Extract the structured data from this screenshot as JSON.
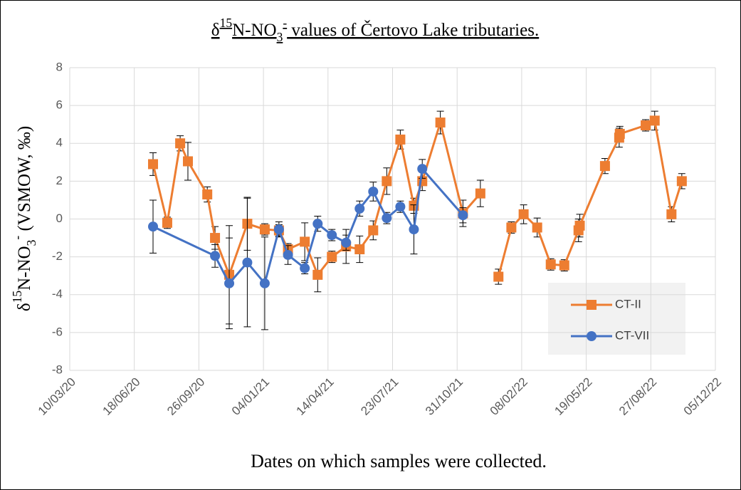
{
  "chart_data": {
    "type": "line",
    "title": [
      "δ",
      "15",
      "N-NO",
      "3",
      "-",
      " values of Čertovo Lake tributaries."
    ],
    "x_label": "Dates on which samples were collected.",
    "y_label": [
      "δ",
      "15",
      "N-NO",
      "3",
      "-",
      " (VSMOW, ‰)"
    ],
    "xlim": [
      "10/03/20",
      "05/12/22"
    ],
    "xticks": [
      "10/03/20",
      "18/06/20",
      "26/09/20",
      "04/01/21",
      "14/04/21",
      "23/07/21",
      "31/10/21",
      "08/02/22",
      "19/05/22",
      "27/08/22",
      "05/12/22"
    ],
    "ylim": [
      -8,
      8
    ],
    "yticks": [
      -8,
      -6,
      -4,
      -2,
      0,
      2,
      4,
      6,
      8
    ],
    "grid": true,
    "legend": "lower right",
    "series": [
      {
        "name": "CT-II",
        "color": "#ed7d31",
        "marker": "square",
        "x": [
          "17/07/20",
          "08/08/20",
          "28/08/20",
          "09/09/20",
          "09/10/20",
          "21/10/20",
          "12/11/20",
          "10/12/20",
          "06/01/21",
          "28/01/21",
          "11/02/21",
          "09/03/21",
          "29/03/21",
          "20/04/21",
          "12/05/21",
          "02/06/21",
          "23/06/21",
          "14/07/21",
          "04/08/21",
          "25/08/21",
          "07/09/21",
          "05/10/21",
          "09/11/21",
          "06/12/21",
          null,
          "03/01/22",
          "23/01/22",
          "11/02/22",
          "04/03/22",
          "25/03/22",
          "15/04/22",
          "07/05/22",
          "09/05/22",
          "17/06/22",
          "09/07/22",
          "10/07/22",
          "19/08/22",
          "02/09/22",
          "28/09/22",
          "14/10/22"
        ],
        "values": [
          2.9,
          -0.2,
          4.0,
          3.05,
          1.3,
          -1.0,
          -2.95,
          -0.25,
          -0.55,
          -0.6,
          -1.6,
          -1.2,
          -2.95,
          -2.0,
          -1.45,
          -1.6,
          -0.6,
          2.0,
          4.2,
          0.7,
          2.0,
          5.1,
          0.3,
          1.35,
          null,
          -3.05,
          -0.45,
          0.25,
          -0.45,
          -2.4,
          -2.45,
          -0.6,
          -0.35,
          2.8,
          4.3,
          4.5,
          4.95,
          5.2,
          0.25,
          2.0
        ],
        "errors": [
          0.6,
          0.3,
          0.4,
          1.0,
          0.4,
          0.6,
          2.6,
          1.4,
          0.3,
          0.3,
          0.3,
          1.0,
          0.9,
          0.3,
          0.9,
          0.7,
          0.5,
          0.7,
          0.5,
          0.4,
          0.5,
          0.6,
          0.7,
          0.7,
          null,
          0.4,
          0.3,
          0.5,
          0.5,
          0.3,
          0.3,
          0.6,
          0.6,
          0.4,
          0.5,
          0.4,
          0.3,
          0.5,
          0.4,
          0.4
        ]
      },
      {
        "name": "CT-VII",
        "color": "#4472c4",
        "marker": "circle",
        "x": [
          "17/07/20",
          "21/10/20",
          "12/11/20",
          "10/12/20",
          "06/01/21",
          "28/01/21",
          "11/02/21",
          "09/03/21",
          "29/03/21",
          "20/04/21",
          "12/05/21",
          "02/06/21",
          "23/06/21",
          "14/07/21",
          "04/08/21",
          "25/08/21",
          "07/09/21",
          "09/11/21"
        ],
        "values": [
          -0.4,
          -1.95,
          -3.4,
          -2.3,
          -3.4,
          -0.55,
          -1.9,
          -2.6,
          -0.25,
          -0.85,
          -1.25,
          0.55,
          1.45,
          0.05,
          0.65,
          -0.55,
          2.65,
          0.2
        ],
        "errors": [
          1.4,
          0.6,
          2.4,
          3.4,
          2.45,
          0.4,
          0.5,
          0.3,
          0.4,
          0.3,
          0.4,
          0.4,
          0.5,
          0.3,
          0.3,
          1.3,
          0.5,
          0.4
        ]
      }
    ]
  }
}
